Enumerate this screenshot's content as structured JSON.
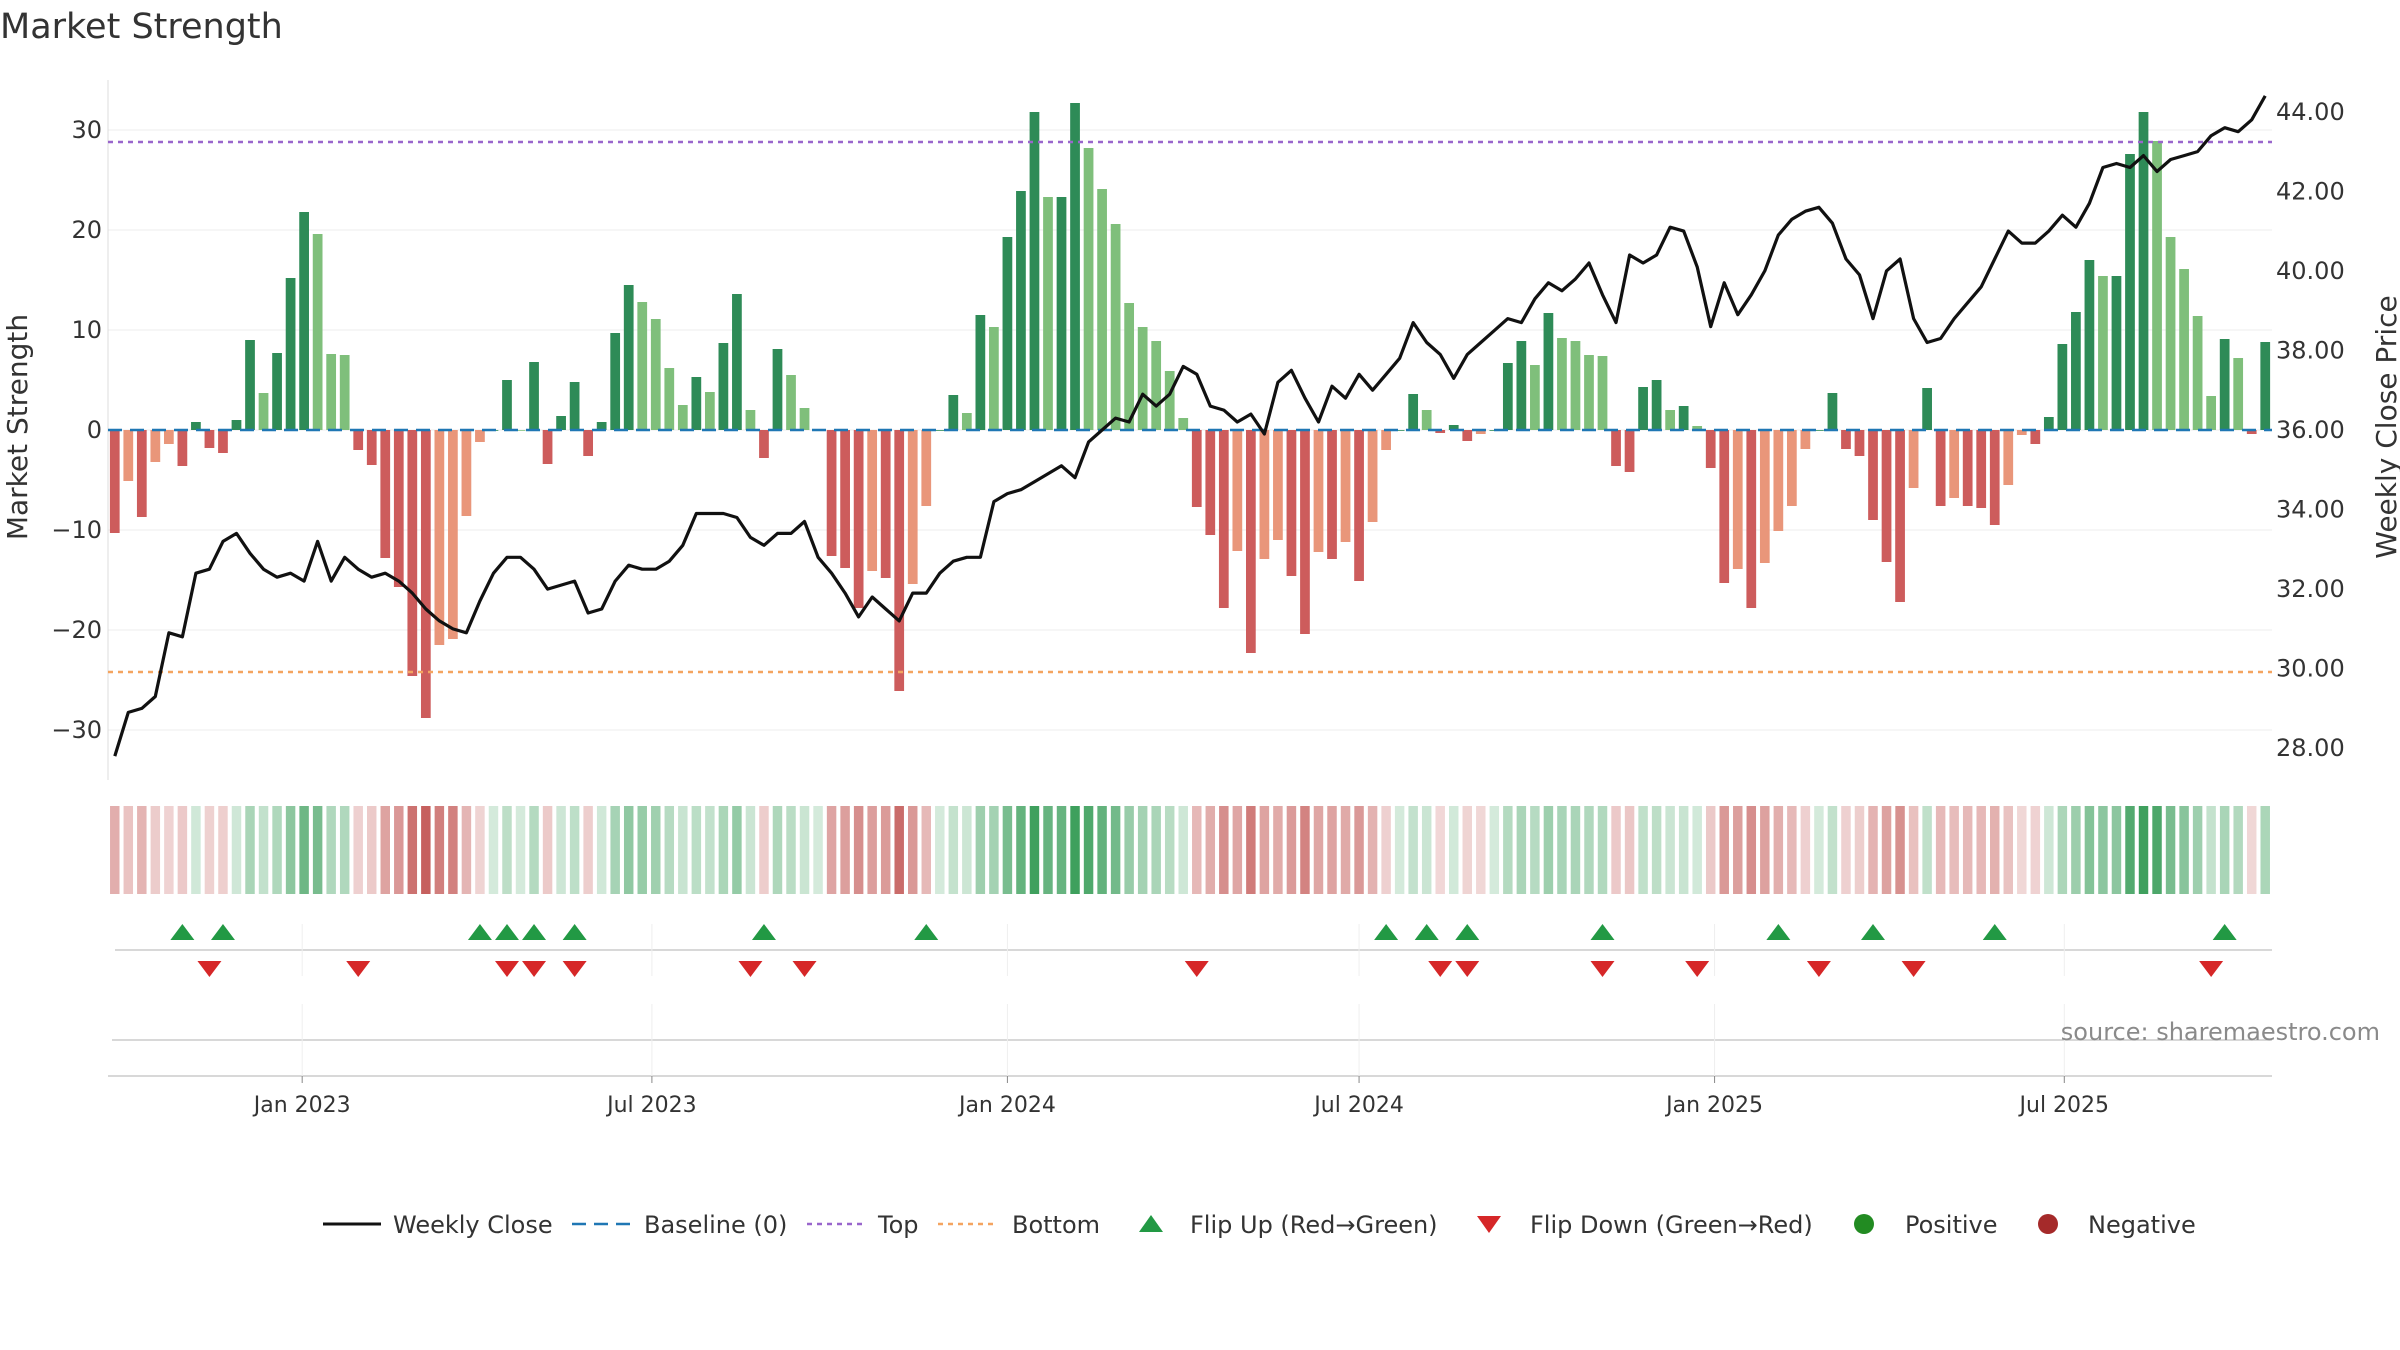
{
  "chart_data": {
    "type": "bar",
    "title": "Market Strength",
    "ylabel": "Market Strength",
    "y2label": "Weekly Close Price",
    "ylim": [
      -35,
      35
    ],
    "y2lim": [
      27.2,
      44.8
    ],
    "yticks": [
      -30,
      -20,
      -10,
      0,
      10,
      20,
      30
    ],
    "yticklabels": [
      "−30",
      "−20",
      "−10",
      "0",
      "10",
      "20",
      "30"
    ],
    "y2ticks": [
      28,
      30,
      32,
      34,
      36,
      38,
      40,
      42,
      44
    ],
    "y2ticklabels": [
      "28.00",
      "30.00",
      "32.00",
      "34.00",
      "36.00",
      "38.00",
      "40.00",
      "42.00",
      "44.00"
    ],
    "x_start": "2022-09-26",
    "x_step_days": 7,
    "xticks": [
      {
        "date": "2023-01-01",
        "label": "Jan 2023"
      },
      {
        "date": "2023-07-01",
        "label": "Jul 2023"
      },
      {
        "date": "2024-01-01",
        "label": "Jan 2024"
      },
      {
        "date": "2024-07-01",
        "label": "Jul 2024"
      },
      {
        "date": "2025-01-01",
        "label": "Jan 2025"
      },
      {
        "date": "2025-07-01",
        "label": "Jul 2025"
      }
    ],
    "top_level": 28.8,
    "bottom_level": -24.2,
    "grid": true,
    "legend_position": "bottom",
    "series": [
      {
        "name": "Market Strength",
        "kind": "bar",
        "values": [
          -10.3,
          -5.1,
          -8.7,
          -3.2,
          -1.4,
          -3.6,
          0.8,
          -1.8,
          -2.3,
          1.0,
          9.0,
          3.7,
          7.7,
          15.2,
          21.8,
          19.6,
          7.6,
          7.5,
          -2.0,
          -3.5,
          -12.8,
          -15.7,
          -24.6,
          -28.8,
          -21.5,
          -20.9,
          -8.6,
          -1.2,
          0.0,
          5.0,
          0.0,
          6.8,
          -3.4,
          1.4,
          4.8,
          -2.6,
          0.8,
          9.7,
          14.5,
          12.8,
          11.1,
          6.2,
          2.5,
          5.3,
          3.8,
          8.7,
          13.6,
          2.0,
          -2.8,
          8.1,
          5.5,
          2.2,
          0.0,
          -12.6,
          -13.8,
          -17.8,
          -14.1,
          -14.8,
          -26.1,
          -15.4,
          -7.6,
          0.0,
          3.5,
          1.7,
          11.5,
          10.3,
          19.3,
          23.9,
          31.8,
          23.3,
          23.3,
          32.7,
          28.2,
          24.1,
          20.6,
          12.7,
          10.3,
          8.9,
          5.9,
          1.2,
          -7.7,
          -10.5,
          -17.8,
          -12.1,
          -22.3,
          -12.9,
          -11.0,
          -14.6,
          -20.4,
          -12.2,
          -12.9,
          -11.2,
          -15.1,
          -9.2,
          -2.0,
          0.0,
          3.6,
          2.0,
          -0.3,
          0.5,
          -1.1,
          -0.4,
          0.0,
          6.7,
          8.9,
          6.5,
          11.7,
          9.2,
          8.9,
          7.5,
          7.4,
          -3.6,
          -4.2,
          4.3,
          5.0,
          2.0,
          2.4,
          0.4,
          -3.8,
          -15.3,
          -13.9,
          -17.8,
          -13.3,
          -10.1,
          -7.6,
          -1.9,
          0.0,
          3.7,
          -1.9,
          -2.6,
          -9.0,
          -13.2,
          -17.2,
          -5.8,
          4.2,
          -7.6,
          -6.8,
          -7.6,
          -7.8,
          -9.5,
          -5.5,
          -0.5,
          -1.4,
          1.3,
          8.6,
          11.8,
          17.0,
          15.4,
          15.4,
          27.6,
          31.8,
          28.9,
          19.3,
          16.1,
          11.4,
          3.4,
          9.1,
          7.2,
          -0.4,
          8.8
        ]
      },
      {
        "name": "Weekly Close",
        "kind": "line",
        "values": [
          27.8,
          28.9,
          29.0,
          29.3,
          30.9,
          30.8,
          32.4,
          32.5,
          33.2,
          33.4,
          32.9,
          32.5,
          32.3,
          32.4,
          32.2,
          33.2,
          32.2,
          32.8,
          32.5,
          32.3,
          32.4,
          32.2,
          31.9,
          31.5,
          31.2,
          31.0,
          30.9,
          31.7,
          32.4,
          32.8,
          32.8,
          32.5,
          32.0,
          32.1,
          32.2,
          31.4,
          31.5,
          32.2,
          32.6,
          32.5,
          32.5,
          32.7,
          33.1,
          33.9,
          33.9,
          33.9,
          33.8,
          33.3,
          33.1,
          33.4,
          33.4,
          33.7,
          32.8,
          32.4,
          31.9,
          31.3,
          31.8,
          31.5,
          31.2,
          31.9,
          31.9,
          32.4,
          32.7,
          32.8,
          32.8,
          34.2,
          34.4,
          34.5,
          34.7,
          34.9,
          35.1,
          34.8,
          35.7,
          36.0,
          36.3,
          36.2,
          36.9,
          36.6,
          36.9,
          37.6,
          37.4,
          36.6,
          36.5,
          36.2,
          36.4,
          35.9,
          37.2,
          37.5,
          36.8,
          36.2,
          37.1,
          36.8,
          37.4,
          37.0,
          37.4,
          37.8,
          38.7,
          38.2,
          37.9,
          37.3,
          37.9,
          38.2,
          38.5,
          38.8,
          38.7,
          39.3,
          39.7,
          39.5,
          39.8,
          40.2,
          39.4,
          38.7,
          40.4,
          40.2,
          40.4,
          41.1,
          41.0,
          40.1,
          38.6,
          39.7,
          38.9,
          39.4,
          40.0,
          40.9,
          41.3,
          41.5,
          41.6,
          41.2,
          40.3,
          39.9,
          38.8,
          40.0,
          40.3,
          38.8,
          38.2,
          38.3,
          38.8,
          39.2,
          39.6,
          40.3,
          41.0,
          40.7,
          40.7,
          41.0,
          41.4,
          41.1,
          41.7,
          42.6,
          42.7,
          42.6,
          42.9,
          42.5,
          42.8,
          42.9,
          43.0,
          43.4,
          43.6,
          43.5,
          43.8,
          44.4
        ]
      }
    ],
    "flip_up_indices": [
      5,
      8,
      27,
      29,
      31,
      34,
      48,
      60,
      94,
      97,
      100,
      110,
      123,
      130,
      139,
      156
    ],
    "flip_down_indices": [
      7,
      18,
      29,
      31,
      34,
      47,
      51,
      80,
      98,
      100,
      110,
      117,
      126,
      133,
      155
    ],
    "colors": {
      "strong_positive": "#2e8b57",
      "weak_positive": "#7fbf7b",
      "strong_negative": "#cd5c5c",
      "weak_negative": "#e9967a",
      "close_line": "#111111",
      "baseline": "#1f77b4",
      "top": "#9966cc",
      "bottom": "#f4a460",
      "flip_up": "#229944",
      "flip_down": "#d62728",
      "positive": "#228b22",
      "negative": "#a52a2a"
    }
  },
  "source_text": "source: sharemaestro.com",
  "legend": [
    {
      "label": "Weekly Close",
      "icon": "solid-line-icon"
    },
    {
      "label": "Baseline (0)",
      "icon": "dashed-line-icon"
    },
    {
      "label": "Top",
      "icon": "dotted-line-icon"
    },
    {
      "label": "Bottom",
      "icon": "dotted-line-icon"
    },
    {
      "label": "Flip Up (Red→Green)",
      "icon": "triangle-up-icon"
    },
    {
      "label": "Flip Down (Green→Red)",
      "icon": "triangle-down-icon"
    },
    {
      "label": "Positive",
      "icon": "circle-icon"
    },
    {
      "label": "Negative",
      "icon": "circle-icon"
    }
  ]
}
